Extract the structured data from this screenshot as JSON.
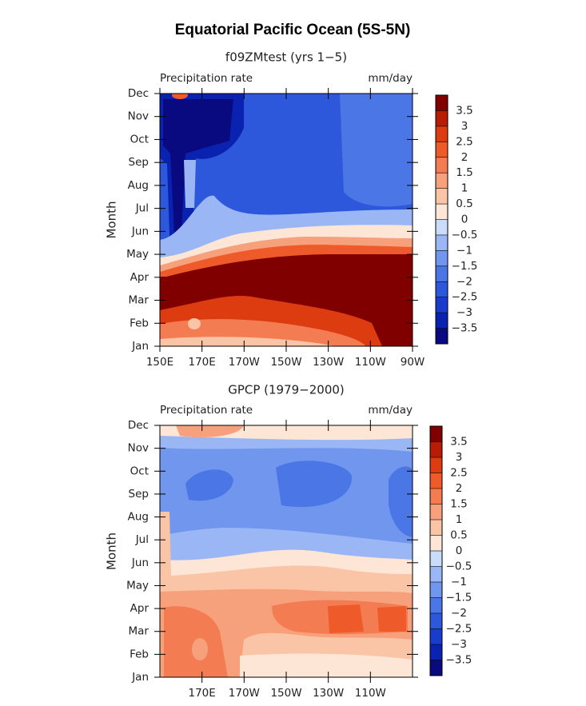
{
  "title": "Equatorial Pacific Ocean (5S-5N)",
  "chart_data": [
    {
      "type": "contour",
      "title": "f09ZMtest (yrs 1−5)",
      "left_label": "Precipitation rate",
      "right_label": "mm/day",
      "y_label": "Month",
      "categories": [
        "Jan",
        "Feb",
        "Mar",
        "Apr",
        "May",
        "Jun",
        "Jul",
        "Aug",
        "Sep",
        "Oct",
        "Nov",
        "Dec"
      ],
      "xlim": [
        150,
        270
      ],
      "xticks": [
        {
          "value": 150,
          "label": "150E"
        },
        {
          "value": 170,
          "label": "170E"
        },
        {
          "value": 190,
          "label": "170W"
        },
        {
          "value": 210,
          "label": "150W"
        },
        {
          "value": 230,
          "label": "130W"
        },
        {
          "value": 250,
          "label": "110W"
        },
        {
          "value": 270,
          "label": "90W"
        }
      ],
      "colorbar": {
        "levels": [
          {
            "value": -3.5,
            "label": "−3.5"
          },
          {
            "value": -3,
            "label": "−3"
          },
          {
            "value": -2.5,
            "label": "−2.5"
          },
          {
            "value": -2,
            "label": "−2"
          },
          {
            "value": -1.5,
            "label": "−1.5"
          },
          {
            "value": -1,
            "label": "−1"
          },
          {
            "value": -0.5,
            "label": "−0.5"
          },
          0,
          0.5,
          1,
          1.5,
          2,
          2.5,
          3,
          3.5
        ],
        "colors": [
          "#0a0a80",
          "#0a22b0",
          "#1a3ccc",
          "#2e58dc",
          "#4a76e6",
          "#7196ee",
          "#9ab6f4",
          "#c9dcf9",
          "#fde6d6",
          "#fac4a6",
          "#f7a07c",
          "#f47c52",
          "#ef5a2a",
          "#dd3c10",
          "#b81c04",
          "#800000"
        ]
      }
    },
    {
      "type": "contour",
      "title": "GPCP (1979−2000)",
      "left_label": "Precipitation rate",
      "right_label": "mm/day",
      "y_label": "Month",
      "categories": [
        "Jan",
        "Feb",
        "Mar",
        "Apr",
        "May",
        "Jun",
        "Jul",
        "Aug",
        "Sep",
        "Oct",
        "Nov",
        "Dec"
      ],
      "xlim": [
        150,
        270
      ],
      "xticks": [
        {
          "value": 170,
          "label": "170E"
        },
        {
          "value": 190,
          "label": "170W"
        },
        {
          "value": 210,
          "label": "150W"
        },
        {
          "value": 230,
          "label": "130W"
        },
        {
          "value": 250,
          "label": "110W"
        }
      ],
      "colorbar": {
        "levels": [
          {
            "value": -3.5,
            "label": "−3.5"
          },
          {
            "value": -3,
            "label": "−3"
          },
          {
            "value": -2.5,
            "label": "−2.5"
          },
          {
            "value": -2,
            "label": "−2"
          },
          {
            "value": -1.5,
            "label": "−1.5"
          },
          {
            "value": -1,
            "label": "−1"
          },
          {
            "value": -0.5,
            "label": "−0.5"
          },
          0,
          0.5,
          1,
          1.5,
          2,
          2.5,
          3,
          3.5
        ],
        "colors": [
          "#0a0a80",
          "#0a22b0",
          "#1a3ccc",
          "#2e58dc",
          "#4a76e6",
          "#7196ee",
          "#9ab6f4",
          "#c9dcf9",
          "#fde6d6",
          "#fac4a6",
          "#f7a07c",
          "#f47c52",
          "#ef5a2a",
          "#dd3c10",
          "#b81c04",
          "#800000"
        ]
      }
    }
  ]
}
